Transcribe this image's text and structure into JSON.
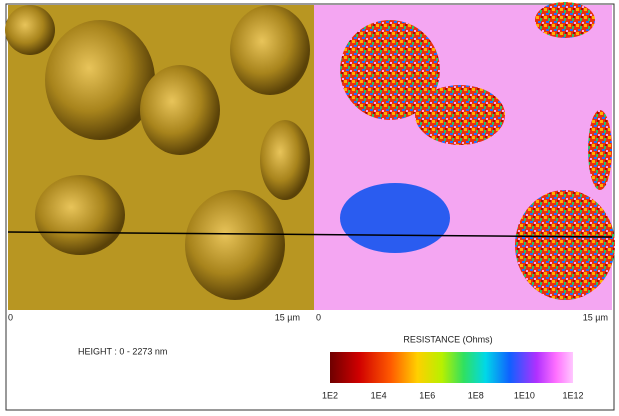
{
  "left_panel": {
    "axis": {
      "start": "0",
      "end": "15 µm"
    },
    "caption": "HEIGHT : 0 - 2273 nm"
  },
  "right_panel": {
    "axis": {
      "start": "0",
      "end": "15 µm"
    },
    "colorbar": {
      "title": "RESISTANCE (Ohms)",
      "labels": [
        "1E2",
        "1E4",
        "1E6",
        "1E8",
        "1E10",
        "1E12"
      ]
    }
  }
}
